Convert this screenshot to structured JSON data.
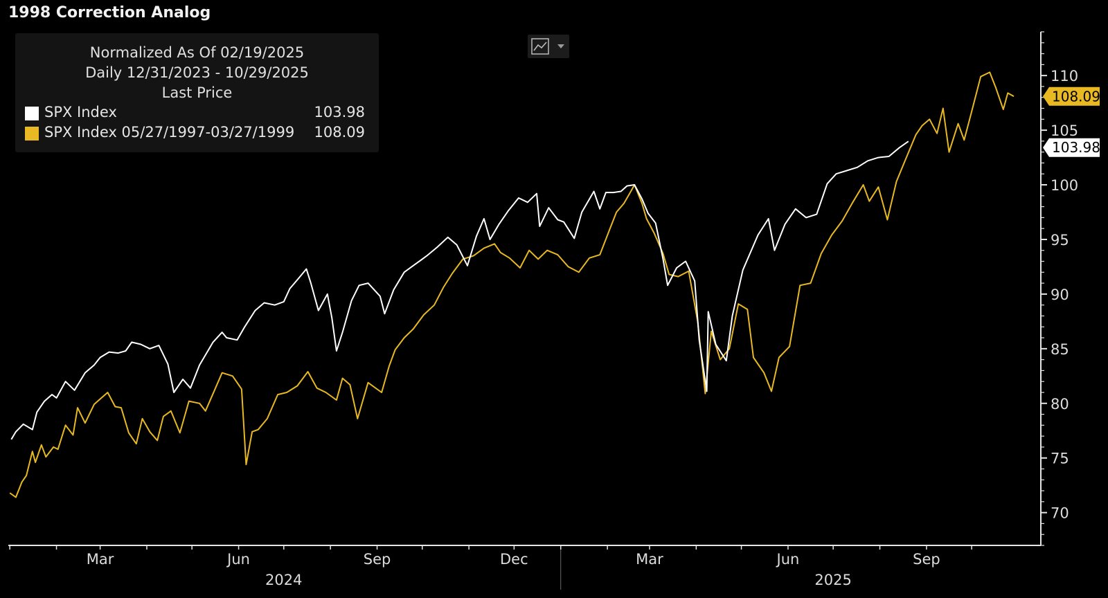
{
  "title": "1998 Correction Analog",
  "legend": {
    "line1": "Normalized As Of 02/19/2025",
    "line2": "Daily 12/31/2023 - 10/29/2025",
    "line3": "Last Price",
    "entries": [
      {
        "name": "SPX Index",
        "value": "103.98",
        "color": "#ffffff"
      },
      {
        "name": "SPX Index 05/27/1997-03/27/1999",
        "value": "108.09",
        "color": "#e8b923"
      }
    ]
  },
  "toolbar": {
    "chart_type_icon": "line-chart-icon",
    "dropdown_icon": "caret-down-icon"
  },
  "chart_data": {
    "type": "line",
    "title": "1998 Correction Analog",
    "x_range": [
      "2023-12-31",
      "2025-10-29"
    ],
    "ylim": [
      67,
      114
    ],
    "y_ticks": [
      70,
      75,
      80,
      85,
      90,
      95,
      100,
      105,
      110
    ],
    "y_tick_labels": [
      "70",
      "75",
      "80",
      "85",
      "90",
      "95",
      "100",
      "105",
      "110"
    ],
    "x_ticks": [
      {
        "label": "Mar",
        "date": "2024-03-01"
      },
      {
        "label": "Jun",
        "date": "2024-06-01"
      },
      {
        "label": "Sep",
        "date": "2024-09-01"
      },
      {
        "label": "Dec",
        "date": "2024-12-01"
      },
      {
        "label": "Mar",
        "date": "2025-03-01"
      },
      {
        "label": "Jun",
        "date": "2025-06-01"
      },
      {
        "label": "Sep",
        "date": "2025-09-01"
      }
    ],
    "years": [
      {
        "label": "2024",
        "date": "2024-07-01"
      },
      {
        "label": "2025",
        "date": "2025-07-01"
      }
    ],
    "year_separator": "2025-01-01",
    "grid": false,
    "series": [
      {
        "name": "SPX Index",
        "color": "#ffffff",
        "last_value": 103.98,
        "last_label": "103.98",
        "points": [
          [
            "2024-01-02",
            76.7
          ],
          [
            "2024-01-05",
            77.4
          ],
          [
            "2024-01-10",
            78.1
          ],
          [
            "2024-01-16",
            77.6
          ],
          [
            "2024-01-19",
            79.2
          ],
          [
            "2024-01-24",
            80.2
          ],
          [
            "2024-01-29",
            80.8
          ],
          [
            "2024-02-01",
            80.5
          ],
          [
            "2024-02-07",
            82.0
          ],
          [
            "2024-02-13",
            81.2
          ],
          [
            "2024-02-20",
            82.8
          ],
          [
            "2024-02-26",
            83.5
          ],
          [
            "2024-03-01",
            84.2
          ],
          [
            "2024-03-07",
            84.7
          ],
          [
            "2024-03-13",
            84.6
          ],
          [
            "2024-03-18",
            84.8
          ],
          [
            "2024-03-22",
            85.6
          ],
          [
            "2024-03-28",
            85.4
          ],
          [
            "2024-04-03",
            85.0
          ],
          [
            "2024-04-09",
            85.3
          ],
          [
            "2024-04-15",
            83.6
          ],
          [
            "2024-04-19",
            81.0
          ],
          [
            "2024-04-25",
            82.2
          ],
          [
            "2024-04-30",
            81.4
          ],
          [
            "2024-05-06",
            83.5
          ],
          [
            "2024-05-15",
            85.6
          ],
          [
            "2024-05-21",
            86.5
          ],
          [
            "2024-05-24",
            86.0
          ],
          [
            "2024-05-31",
            85.8
          ],
          [
            "2024-06-05",
            87.0
          ],
          [
            "2024-06-12",
            88.5
          ],
          [
            "2024-06-18",
            89.2
          ],
          [
            "2024-06-25",
            89.0
          ],
          [
            "2024-07-01",
            89.3
          ],
          [
            "2024-07-05",
            90.5
          ],
          [
            "2024-07-10",
            91.3
          ],
          [
            "2024-07-16",
            92.3
          ],
          [
            "2024-07-19",
            91.0
          ],
          [
            "2024-07-24",
            88.5
          ],
          [
            "2024-07-30",
            90.0
          ],
          [
            "2024-08-02",
            87.8
          ],
          [
            "2024-08-05",
            84.8
          ],
          [
            "2024-08-09",
            86.5
          ],
          [
            "2024-08-15",
            89.4
          ],
          [
            "2024-08-20",
            90.8
          ],
          [
            "2024-08-26",
            91.0
          ],
          [
            "2024-09-03",
            89.8
          ],
          [
            "2024-09-06",
            88.2
          ],
          [
            "2024-09-12",
            90.4
          ],
          [
            "2024-09-19",
            92.0
          ],
          [
            "2024-09-25",
            92.6
          ],
          [
            "2024-09-30",
            93.1
          ],
          [
            "2024-10-04",
            93.5
          ],
          [
            "2024-10-11",
            94.3
          ],
          [
            "2024-10-18",
            95.2
          ],
          [
            "2024-10-24",
            94.5
          ],
          [
            "2024-10-31",
            92.6
          ],
          [
            "2024-11-06",
            95.3
          ],
          [
            "2024-11-11",
            96.9
          ],
          [
            "2024-11-15",
            95.0
          ],
          [
            "2024-11-21",
            96.4
          ],
          [
            "2024-11-27",
            97.6
          ],
          [
            "2024-12-04",
            98.8
          ],
          [
            "2024-12-10",
            98.4
          ],
          [
            "2024-12-16",
            99.2
          ],
          [
            "2024-12-18",
            96.2
          ],
          [
            "2024-12-24",
            97.9
          ],
          [
            "2024-12-30",
            96.8
          ],
          [
            "2025-01-03",
            96.6
          ],
          [
            "2025-01-10",
            95.1
          ],
          [
            "2025-01-15",
            97.5
          ],
          [
            "2025-01-23",
            99.4
          ],
          [
            "2025-01-27",
            97.8
          ],
          [
            "2025-01-31",
            99.3
          ],
          [
            "2025-02-05",
            99.3
          ],
          [
            "2025-02-10",
            99.4
          ],
          [
            "2025-02-14",
            99.9
          ],
          [
            "2025-02-19",
            100.0
          ],
          [
            "2025-02-24",
            98.7
          ],
          [
            "2025-02-28",
            97.4
          ],
          [
            "2025-03-05",
            96.5
          ],
          [
            "2025-03-10",
            93.2
          ],
          [
            "2025-03-13",
            90.8
          ],
          [
            "2025-03-19",
            92.4
          ],
          [
            "2025-03-25",
            93.0
          ],
          [
            "2025-03-31",
            91.2
          ],
          [
            "2025-04-03",
            85.8
          ],
          [
            "2025-04-08",
            81.1
          ],
          [
            "2025-04-09",
            88.4
          ],
          [
            "2025-04-14",
            85.4
          ],
          [
            "2025-04-21",
            83.9
          ],
          [
            "2025-04-25",
            88.0
          ],
          [
            "2025-05-02",
            92.2
          ],
          [
            "2025-05-12",
            95.4
          ],
          [
            "2025-05-19",
            96.9
          ],
          [
            "2025-05-23",
            94.0
          ],
          [
            "2025-05-30",
            96.4
          ],
          [
            "2025-06-06",
            97.8
          ],
          [
            "2025-06-13",
            97.0
          ],
          [
            "2025-06-20",
            97.3
          ],
          [
            "2025-06-27",
            100.1
          ],
          [
            "2025-07-03",
            101.0
          ],
          [
            "2025-07-10",
            101.3
          ],
          [
            "2025-07-17",
            101.6
          ],
          [
            "2025-07-24",
            102.2
          ],
          [
            "2025-07-31",
            102.5
          ],
          [
            "2025-08-07",
            102.6
          ],
          [
            "2025-08-14",
            103.4
          ],
          [
            "2025-08-20",
            103.98
          ]
        ]
      },
      {
        "name": "SPX Index 05/27/1997-03/27/1999",
        "color": "#e8b923",
        "last_value": 108.09,
        "last_label": "108.09",
        "points": [
          [
            "2024-01-01",
            71.8
          ],
          [
            "2024-01-05",
            71.4
          ],
          [
            "2024-01-09",
            72.8
          ],
          [
            "2024-01-12",
            73.4
          ],
          [
            "2024-01-16",
            75.6
          ],
          [
            "2024-01-18",
            74.6
          ],
          [
            "2024-01-22",
            76.2
          ],
          [
            "2024-01-25",
            75.1
          ],
          [
            "2024-01-30",
            76.0
          ],
          [
            "2024-02-02",
            75.8
          ],
          [
            "2024-02-07",
            78.0
          ],
          [
            "2024-02-12",
            77.1
          ],
          [
            "2024-02-15",
            79.6
          ],
          [
            "2024-02-20",
            78.2
          ],
          [
            "2024-02-26",
            79.9
          ],
          [
            "2024-03-01",
            80.4
          ],
          [
            "2024-03-06",
            81.0
          ],
          [
            "2024-03-11",
            79.7
          ],
          [
            "2024-03-15",
            79.6
          ],
          [
            "2024-03-20",
            77.3
          ],
          [
            "2024-03-25",
            76.3
          ],
          [
            "2024-03-29",
            78.6
          ],
          [
            "2024-04-03",
            77.4
          ],
          [
            "2024-04-08",
            76.6
          ],
          [
            "2024-04-12",
            78.8
          ],
          [
            "2024-04-17",
            79.3
          ],
          [
            "2024-04-23",
            77.3
          ],
          [
            "2024-04-29",
            80.2
          ],
          [
            "2024-05-06",
            80.0
          ],
          [
            "2024-05-10",
            79.3
          ],
          [
            "2024-05-16",
            81.2
          ],
          [
            "2024-05-21",
            82.8
          ],
          [
            "2024-05-28",
            82.5
          ],
          [
            "2024-06-03",
            81.3
          ],
          [
            "2024-06-06",
            74.4
          ],
          [
            "2024-06-10",
            77.4
          ],
          [
            "2024-06-14",
            77.6
          ],
          [
            "2024-06-20",
            78.6
          ],
          [
            "2024-06-27",
            80.8
          ],
          [
            "2024-07-03",
            81.0
          ],
          [
            "2024-07-10",
            81.6
          ],
          [
            "2024-07-17",
            82.9
          ],
          [
            "2024-07-23",
            81.4
          ],
          [
            "2024-07-29",
            81.0
          ],
          [
            "2024-08-05",
            80.3
          ],
          [
            "2024-08-09",
            82.3
          ],
          [
            "2024-08-14",
            81.7
          ],
          [
            "2024-08-19",
            78.6
          ],
          [
            "2024-08-26",
            81.9
          ],
          [
            "2024-09-04",
            81.0
          ],
          [
            "2024-09-09",
            83.4
          ],
          [
            "2024-09-13",
            84.9
          ],
          [
            "2024-09-19",
            86.0
          ],
          [
            "2024-09-25",
            86.8
          ],
          [
            "2024-10-02",
            88.1
          ],
          [
            "2024-10-09",
            89.0
          ],
          [
            "2024-10-15",
            90.6
          ],
          [
            "2024-10-21",
            91.9
          ],
          [
            "2024-10-28",
            93.2
          ],
          [
            "2024-11-04",
            93.5
          ],
          [
            "2024-11-11",
            94.2
          ],
          [
            "2024-11-18",
            94.6
          ],
          [
            "2024-11-22",
            93.8
          ],
          [
            "2024-11-28",
            93.3
          ],
          [
            "2024-12-05",
            92.4
          ],
          [
            "2024-12-11",
            94.0
          ],
          [
            "2024-12-17",
            93.2
          ],
          [
            "2024-12-23",
            94.0
          ],
          [
            "2024-12-30",
            93.6
          ],
          [
            "2025-01-06",
            92.5
          ],
          [
            "2025-01-13",
            92.0
          ],
          [
            "2025-01-20",
            93.3
          ],
          [
            "2025-01-27",
            93.6
          ],
          [
            "2025-02-03",
            96.1
          ],
          [
            "2025-02-07",
            97.5
          ],
          [
            "2025-02-12",
            98.3
          ],
          [
            "2025-02-17",
            99.5
          ],
          [
            "2025-02-19",
            100.0
          ],
          [
            "2025-02-24",
            98.3
          ],
          [
            "2025-02-27",
            96.9
          ],
          [
            "2025-03-04",
            95.6
          ],
          [
            "2025-03-10",
            93.7
          ],
          [
            "2025-03-14",
            91.8
          ],
          [
            "2025-03-20",
            91.6
          ],
          [
            "2025-03-27",
            92.1
          ],
          [
            "2025-04-02",
            87.5
          ],
          [
            "2025-04-07",
            80.9
          ],
          [
            "2025-04-11",
            86.6
          ],
          [
            "2025-04-17",
            84.0
          ],
          [
            "2025-04-23",
            85.0
          ],
          [
            "2025-04-29",
            89.1
          ],
          [
            "2025-05-05",
            88.6
          ],
          [
            "2025-05-09",
            84.2
          ],
          [
            "2025-05-16",
            82.8
          ],
          [
            "2025-05-21",
            81.1
          ],
          [
            "2025-05-26",
            84.2
          ],
          [
            "2025-06-02",
            85.2
          ],
          [
            "2025-06-09",
            90.8
          ],
          [
            "2025-06-16",
            91.0
          ],
          [
            "2025-06-23",
            93.7
          ],
          [
            "2025-06-30",
            95.4
          ],
          [
            "2025-07-07",
            96.7
          ],
          [
            "2025-07-14",
            98.4
          ],
          [
            "2025-07-21",
            100.0
          ],
          [
            "2025-07-25",
            98.5
          ],
          [
            "2025-07-31",
            99.8
          ],
          [
            "2025-08-06",
            96.8
          ],
          [
            "2025-08-12",
            100.3
          ],
          [
            "2025-08-18",
            102.3
          ],
          [
            "2025-08-25",
            104.6
          ],
          [
            "2025-08-29",
            105.4
          ],
          [
            "2025-09-03",
            106.0
          ],
          [
            "2025-09-08",
            104.7
          ],
          [
            "2025-09-12",
            107.0
          ],
          [
            "2025-09-16",
            103.0
          ],
          [
            "2025-09-22",
            105.6
          ],
          [
            "2025-09-26",
            104.1
          ],
          [
            "2025-10-01",
            106.7
          ],
          [
            "2025-10-07",
            109.9
          ],
          [
            "2025-10-13",
            110.3
          ],
          [
            "2025-10-17",
            108.9
          ],
          [
            "2025-10-22",
            106.9
          ],
          [
            "2025-10-25",
            108.4
          ],
          [
            "2025-10-29",
            108.09
          ]
        ]
      }
    ]
  }
}
